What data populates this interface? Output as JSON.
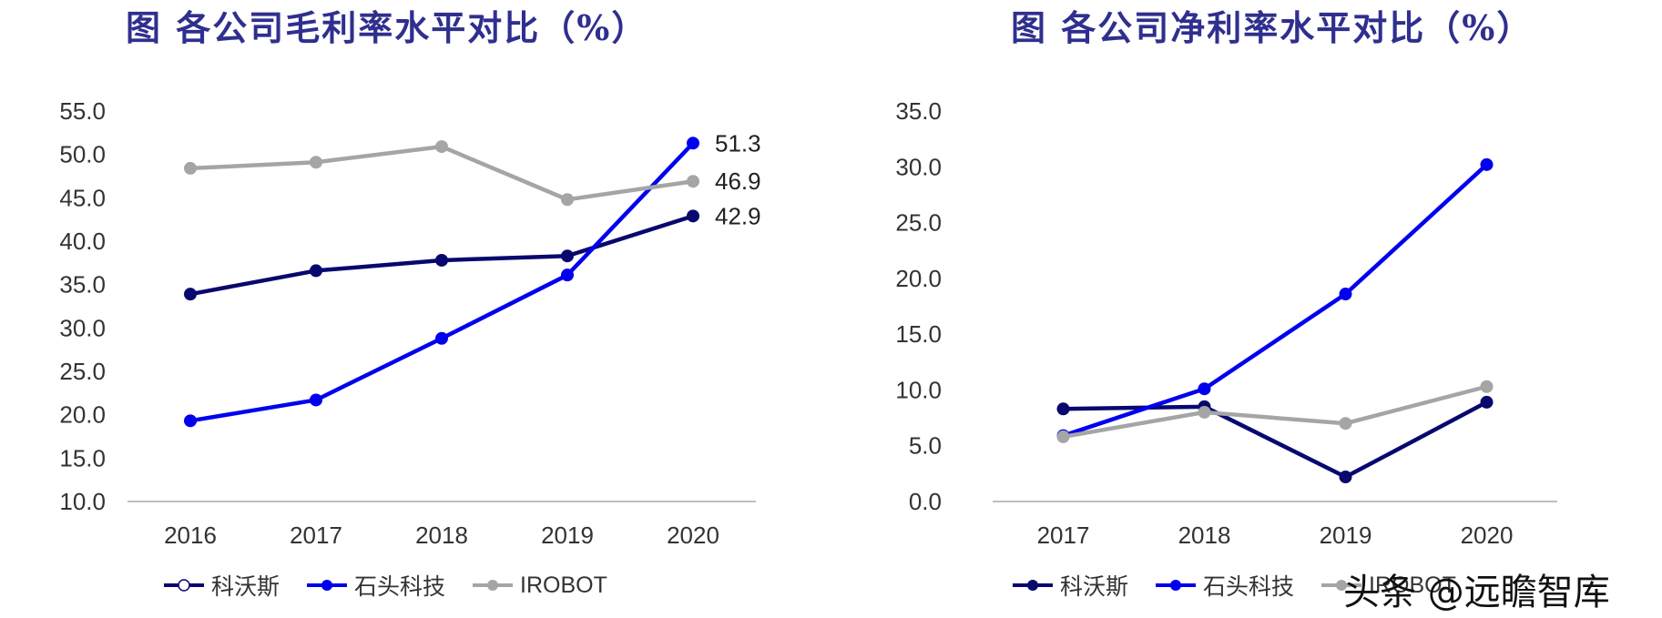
{
  "colors": {
    "kewosi": "#08086e",
    "shitou": "#0000ee",
    "irobot": "#a5a5a5",
    "axis": "#bfbfbf",
    "title": "#2f2f8f"
  },
  "watermark": "头条 @远瞻智库",
  "chart_data": [
    {
      "type": "line",
      "title": "图 各公司毛利率水平对比（%）",
      "xlabel": "",
      "ylabel": "",
      "categories": [
        "2016",
        "2017",
        "2018",
        "2019",
        "2020"
      ],
      "ylim": [
        10,
        55
      ],
      "yticks": [
        "10.0",
        "15.0",
        "20.0",
        "25.0",
        "30.0",
        "35.0",
        "40.0",
        "45.0",
        "50.0",
        "55.0"
      ],
      "grid": false,
      "legend": "bottom",
      "series": [
        {
          "name": "科沃斯",
          "color": "#08086e",
          "values": [
            33.9,
            36.6,
            37.8,
            38.3,
            42.9
          ],
          "end_label": "42.9"
        },
        {
          "name": "石头科技",
          "color": "#0000ee",
          "values": [
            19.3,
            21.7,
            28.8,
            36.1,
            51.3
          ],
          "end_label": "51.3"
        },
        {
          "name": "IROBOT",
          "color": "#a5a5a5",
          "values": [
            48.4,
            49.1,
            50.9,
            44.8,
            46.9
          ],
          "end_label": "46.9"
        }
      ]
    },
    {
      "type": "line",
      "title": "图 各公司净利率水平对比（%）",
      "xlabel": "",
      "ylabel": "",
      "categories": [
        "2017",
        "2018",
        "2019",
        "2020"
      ],
      "ylim": [
        0,
        35
      ],
      "yticks": [
        "0.0",
        "5.0",
        "10.0",
        "15.0",
        "20.0",
        "25.0",
        "30.0",
        "35.0"
      ],
      "grid": false,
      "legend": "bottom",
      "series": [
        {
          "name": "科沃斯",
          "color": "#08086e",
          "values": [
            8.3,
            8.5,
            2.2,
            8.9
          ]
        },
        {
          "name": "石头科技",
          "color": "#0000ee",
          "values": [
            5.9,
            10.1,
            18.6,
            30.2
          ]
        },
        {
          "name": "IROBOT",
          "color": "#a5a5a5",
          "values": [
            5.8,
            8.0,
            7.0,
            10.3
          ]
        }
      ]
    }
  ]
}
